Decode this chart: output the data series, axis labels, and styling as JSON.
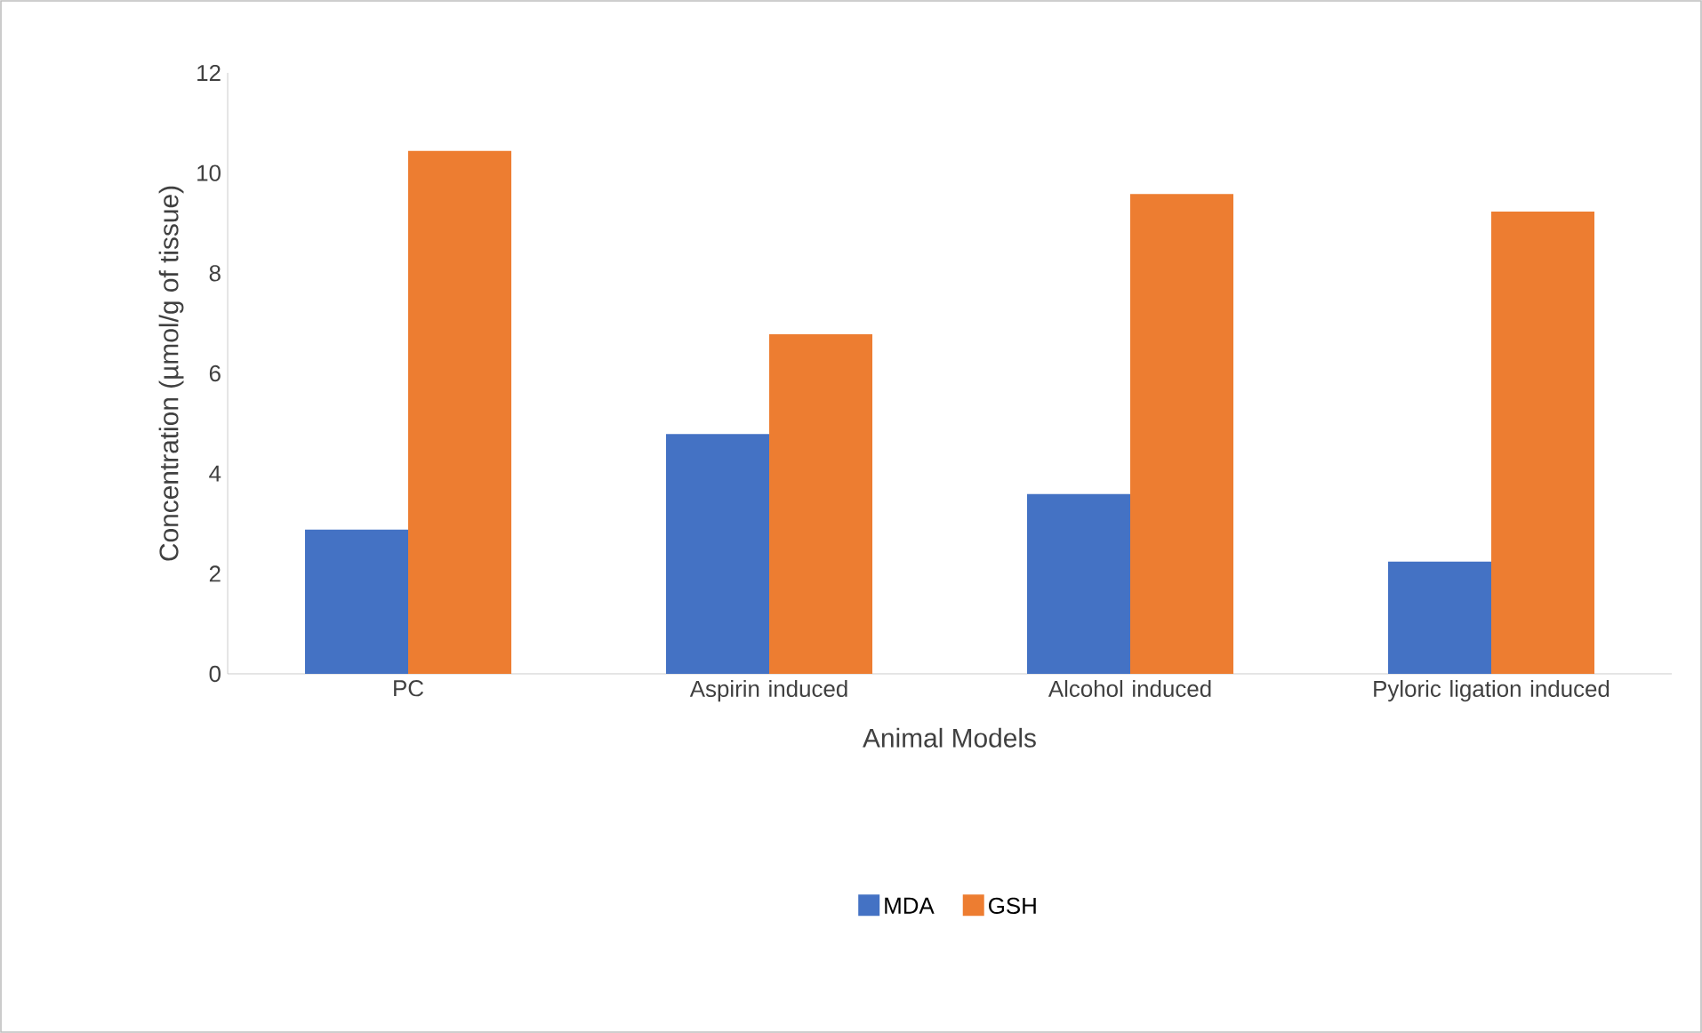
{
  "chart_data": {
    "type": "bar",
    "xlabel": "Animal Models",
    "ylabel": "Concentration (µmol/g of tissue)",
    "categories": [
      "PC",
      "Aspirin induced",
      "Alcohol induced",
      "Pyloric ligation induced"
    ],
    "series": [
      {
        "name": "MDA",
        "color": "#4472c4",
        "values": [
          2.88,
          4.79,
          3.59,
          2.24
        ]
      },
      {
        "name": "GSH",
        "color": "#ed7d31",
        "values": [
          10.44,
          6.78,
          9.58,
          9.23
        ]
      }
    ],
    "ylim": [
      0,
      12
    ],
    "yticks": [
      0,
      2,
      4,
      6,
      8,
      10,
      12
    ],
    "grid": false,
    "legend": "bottom"
  }
}
